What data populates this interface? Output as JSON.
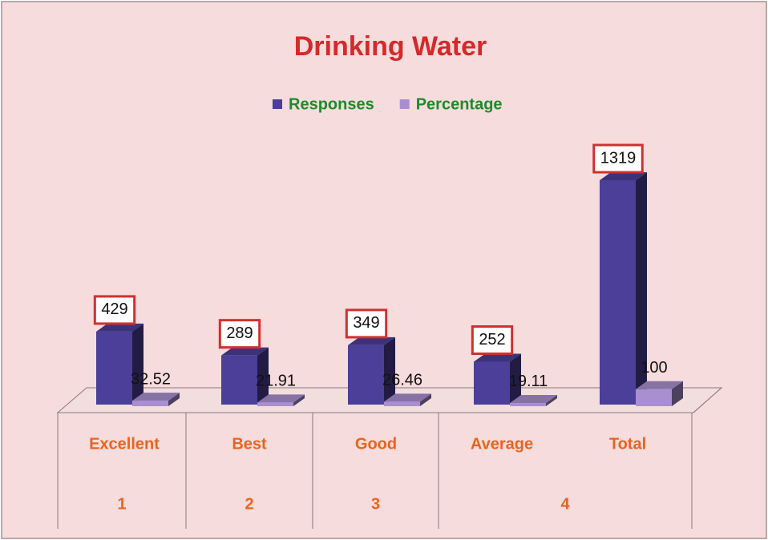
{
  "chart_data": {
    "type": "bar3d",
    "title": "Drinking Water",
    "categories": [
      "Excellent",
      "Best",
      "Good",
      "Average",
      "Total"
    ],
    "groups": [
      "1",
      "2",
      "3",
      "4"
    ],
    "series": [
      {
        "name": "Responses",
        "color": "#4b3f99",
        "values": [
          429,
          289,
          349,
          252,
          1319
        ]
      },
      {
        "name": "Percentage",
        "color": "#a98fd0",
        "values": [
          32.52,
          21.91,
          26.46,
          19.11,
          100
        ]
      }
    ]
  }
}
